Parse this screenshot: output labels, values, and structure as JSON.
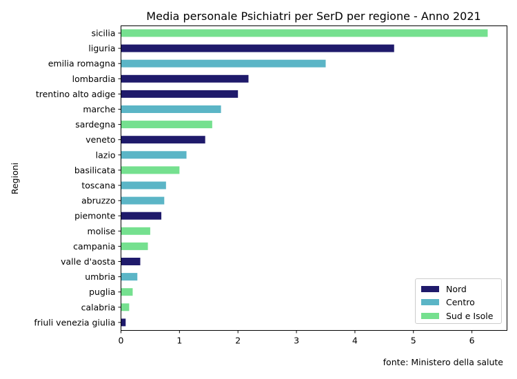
{
  "chart_data": {
    "type": "bar",
    "orientation": "horizontal",
    "title": "Media personale Psichiatri per SerD per regione - Anno 2021",
    "xlabel": "",
    "ylabel": "Regioni",
    "xlim": [
      0,
      6.6
    ],
    "xticks": [
      "0",
      "1",
      "2",
      "3",
      "4",
      "5",
      "6"
    ],
    "grid": false,
    "legend_position": "bottom-right",
    "source": "fonte: Ministero della salute",
    "legend": [
      {
        "name": "Nord",
        "color": "#1f1a6b"
      },
      {
        "name": "Centro",
        "color": "#5bb5c6"
      },
      {
        "name": "Sud e Isole",
        "color": "#75e08f"
      }
    ],
    "categories": [
      "sicilia",
      "liguria",
      "emilia romagna",
      "lombardia",
      "trentino alto adige",
      "marche",
      "sardegna",
      "veneto",
      "lazio",
      "basilicata",
      "toscana",
      "abruzzo",
      "piemonte",
      "molise",
      "campania",
      "valle d'aosta",
      "umbria",
      "puglia",
      "calabria",
      "friuli venezia giulia"
    ],
    "values": [
      6.27,
      4.67,
      3.5,
      2.18,
      2.0,
      1.71,
      1.56,
      1.44,
      1.12,
      1.0,
      0.77,
      0.74,
      0.69,
      0.5,
      0.46,
      0.33,
      0.28,
      0.2,
      0.14,
      0.08
    ],
    "groups": [
      "Sud e Isole",
      "Nord",
      "Centro",
      "Nord",
      "Nord",
      "Centro",
      "Sud e Isole",
      "Nord",
      "Centro",
      "Sud e Isole",
      "Centro",
      "Centro",
      "Nord",
      "Sud e Isole",
      "Sud e Isole",
      "Nord",
      "Centro",
      "Sud e Isole",
      "Sud e Isole",
      "Nord"
    ]
  }
}
